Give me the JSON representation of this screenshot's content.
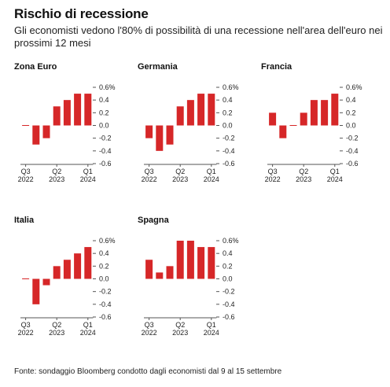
{
  "header": {
    "title": "Rischio di recessione",
    "subtitle": "Gli economisti vedono l'80% di possibilità di una recessione nell'area dell'euro nei prossimi 12 mesi"
  },
  "footer": {
    "source": "Fonte: sondaggio Bloomberg condotto dagli economisti dal 9 al 15 settembre"
  },
  "colors": {
    "bar": "#d62728",
    "zero_line": "#d62728",
    "axis": "#555555"
  },
  "chart_data": [
    {
      "type": "bar",
      "title": "Zona Euro",
      "categories": [
        "Q3 2022",
        "Q4 2022",
        "Q1 2023",
        "Q2 2023",
        "Q3 2023",
        "Q4 2023",
        "Q1 2024"
      ],
      "values": [
        0.0,
        -0.3,
        -0.2,
        0.3,
        0.4,
        0.5,
        0.5
      ],
      "x_tick_labels": [
        [
          "Q3",
          "2022"
        ],
        [
          "Q2",
          "2023"
        ],
        [
          "Q1",
          "2024"
        ]
      ],
      "y_tick_labels": [
        "0.6%",
        "0.4",
        "0.2",
        "0.0",
        "-0.2",
        "-0.4",
        "-0.6"
      ],
      "ylim": [
        -0.6,
        0.6
      ]
    },
    {
      "type": "bar",
      "title": "Germania",
      "categories": [
        "Q3 2022",
        "Q4 2022",
        "Q1 2023",
        "Q2 2023",
        "Q3 2023",
        "Q4 2023",
        "Q1 2024"
      ],
      "values": [
        -0.2,
        -0.4,
        -0.3,
        0.3,
        0.4,
        0.5,
        0.5
      ],
      "x_tick_labels": [
        [
          "Q3",
          "2022"
        ],
        [
          "Q2",
          "2023"
        ],
        [
          "Q1",
          "2024"
        ]
      ],
      "y_tick_labels": [
        "0.6%",
        "0.4",
        "0.2",
        "0.0",
        "-0.2",
        "-0.4",
        "-0.6"
      ],
      "ylim": [
        -0.6,
        0.6
      ]
    },
    {
      "type": "bar",
      "title": "Francia",
      "categories": [
        "Q3 2022",
        "Q4 2022",
        "Q1 2023",
        "Q2 2023",
        "Q3 2023",
        "Q4 2023",
        "Q1 2024"
      ],
      "values": [
        0.2,
        -0.2,
        0.0,
        0.2,
        0.4,
        0.4,
        0.5
      ],
      "x_tick_labels": [
        [
          "Q3",
          "2022"
        ],
        [
          "Q2",
          "2023"
        ],
        [
          "Q1",
          "2024"
        ]
      ],
      "y_tick_labels": [
        "0.6%",
        "0.4",
        "0.2",
        "0.0",
        "-0.2",
        "-0.4",
        "-0.6"
      ],
      "ylim": [
        -0.6,
        0.6
      ]
    },
    {
      "type": "bar",
      "title": "Italia",
      "categories": [
        "Q3 2022",
        "Q4 2022",
        "Q1 2023",
        "Q2 2023",
        "Q3 2023",
        "Q4 2023",
        "Q1 2024"
      ],
      "values": [
        0.0,
        -0.4,
        -0.1,
        0.2,
        0.3,
        0.4,
        0.5
      ],
      "x_tick_labels": [
        [
          "Q3",
          "2022"
        ],
        [
          "Q2",
          "2023"
        ],
        [
          "Q1",
          "2024"
        ]
      ],
      "y_tick_labels": [
        "0.6%",
        "0.4",
        "0.2",
        "0.0",
        "-0.2",
        "-0.4",
        "-0.6"
      ],
      "ylim": [
        -0.6,
        0.6
      ]
    },
    {
      "type": "bar",
      "title": "Spagna",
      "categories": [
        "Q3 2022",
        "Q4 2022",
        "Q1 2023",
        "Q2 2023",
        "Q3 2023",
        "Q4 2023",
        "Q1 2024"
      ],
      "values": [
        0.3,
        0.1,
        0.2,
        0.6,
        0.6,
        0.5,
        0.5
      ],
      "x_tick_labels": [
        [
          "Q3",
          "2022"
        ],
        [
          "Q2",
          "2023"
        ],
        [
          "Q1",
          "2024"
        ]
      ],
      "y_tick_labels": [
        "0.6%",
        "0.4",
        "0.2",
        "0.0",
        "-0.2",
        "-0.4",
        "-0.6"
      ],
      "ylim": [
        -0.6,
        0.6
      ]
    }
  ]
}
